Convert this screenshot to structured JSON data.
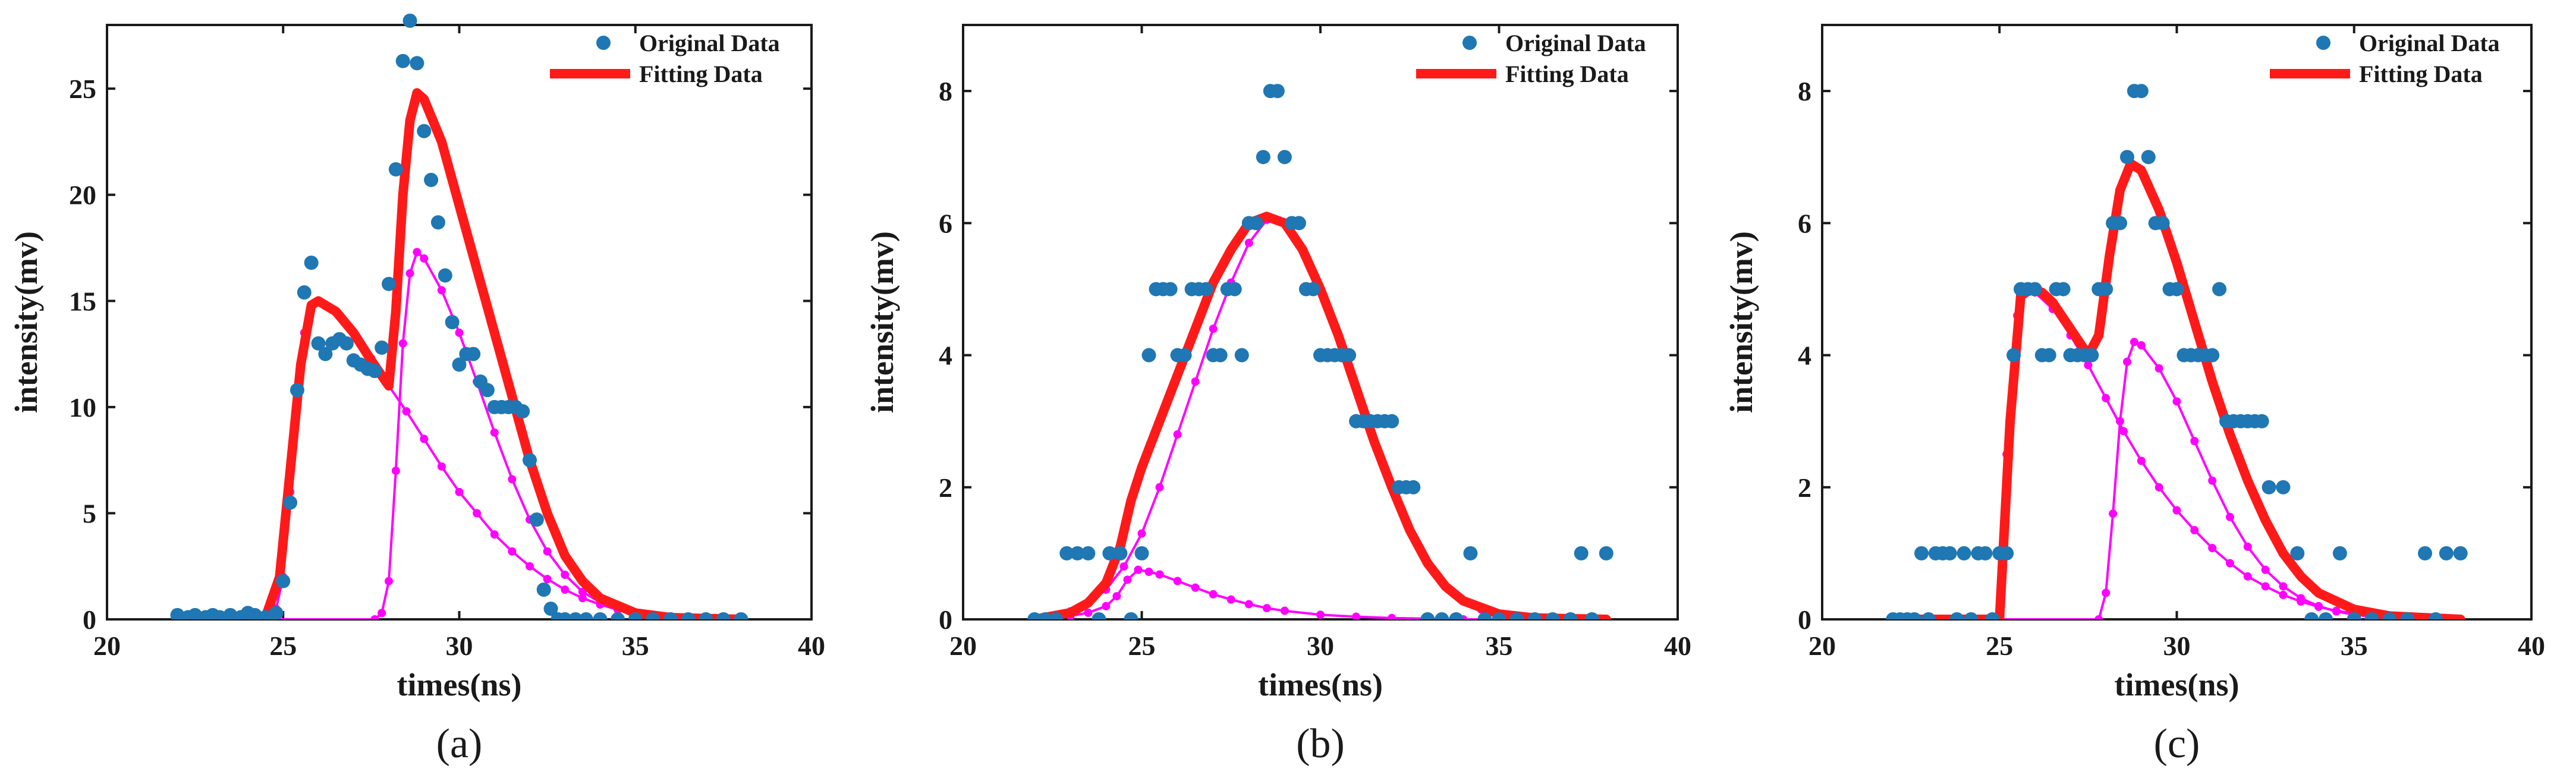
{
  "chart_data": [
    {
      "panel": "(a)",
      "type": "line+scatter",
      "xlabel": "times(ns)",
      "ylabel": "intensity(mv)",
      "xlim": [
        20,
        40
      ],
      "ylim": [
        0,
        28
      ],
      "xticks": [
        20,
        25,
        30,
        35,
        40
      ],
      "yticks": [
        0,
        5,
        10,
        15,
        20,
        25
      ],
      "legend": [
        "Original Data",
        "Fitting Data"
      ],
      "legend_position": "top-right",
      "original": {
        "x": [
          22,
          22.3,
          22.5,
          22.8,
          23,
          23.2,
          23.5,
          23.8,
          24,
          24.2,
          24.5,
          24.8,
          25,
          25.2,
          25.4,
          25.6,
          25.8,
          26,
          26.2,
          26.4,
          26.6,
          26.8,
          27,
          27.2,
          27.4,
          27.6,
          27.8,
          28,
          28.2,
          28.4,
          28.6,
          28.8,
          29,
          29.2,
          29.4,
          29.6,
          29.8,
          30,
          30.2,
          30.4,
          30.6,
          30.8,
          31,
          31.2,
          31.4,
          31.6,
          31.8,
          32,
          32.2,
          32.4,
          32.6,
          32.8,
          33,
          33.3,
          33.6,
          34,
          34.5,
          35,
          35.5,
          36,
          36.5,
          37,
          37.5,
          38
        ],
        "y": [
          0.2,
          0.1,
          0.2,
          0.1,
          0.2,
          0.1,
          0.2,
          0.1,
          0.3,
          0.2,
          0.1,
          0.3,
          1.8,
          5.5,
          10.8,
          15.4,
          16.8,
          13,
          12.5,
          13,
          13.2,
          13,
          12.2,
          12,
          11.8,
          11.7,
          12.8,
          15.8,
          21.2,
          26.3,
          28.2,
          26.2,
          23,
          20.7,
          18.7,
          16.2,
          14,
          12,
          12.5,
          12.5,
          11.2,
          10.8,
          10,
          10,
          10,
          10,
          9.8,
          7.5,
          4.7,
          1.4,
          0.5,
          0,
          0,
          0,
          0,
          0,
          0,
          0,
          0,
          0,
          0,
          0,
          0,
          0
        ]
      },
      "fit": {
        "x": [
          22,
          24.5,
          24.9,
          25.2,
          25.5,
          25.8,
          26,
          26.5,
          27,
          27.5,
          28,
          28.2,
          28.4,
          28.6,
          28.8,
          29,
          29.5,
          30,
          30.5,
          31,
          31.5,
          32,
          32.5,
          33,
          33.5,
          34,
          35,
          36,
          38
        ],
        "y": [
          0,
          0.1,
          2,
          7,
          12,
          14.8,
          15,
          14.5,
          13.5,
          12.2,
          11,
          14.5,
          20,
          23.5,
          24.8,
          24.5,
          22.5,
          19.5,
          16.5,
          13.5,
          10.5,
          7.5,
          5,
          3,
          1.8,
          1,
          0.3,
          0.08,
          0
        ]
      },
      "component_1": {
        "x": [
          22,
          24.5,
          24.8,
          25,
          25.2,
          25.4,
          25.6,
          25.8,
          26,
          26.5,
          27,
          27.5,
          28,
          28.5,
          29,
          29.5,
          30,
          30.5,
          31,
          31.5,
          32,
          32.5,
          33,
          33.5,
          34,
          34.5,
          35,
          35.5,
          36,
          37,
          38
        ],
        "y": [
          0,
          0,
          0.5,
          2,
          6,
          10.5,
          13.5,
          14.7,
          15,
          14.5,
          13.5,
          12.3,
          11,
          9.8,
          8.5,
          7.2,
          6,
          5,
          4,
          3.2,
          2.5,
          1.9,
          1.4,
          1,
          0.7,
          0.45,
          0.3,
          0.2,
          0.12,
          0.05,
          0
        ]
      },
      "component_2": {
        "x": [
          22,
          27.6,
          27.8,
          28,
          28.2,
          28.4,
          28.6,
          28.8,
          29,
          29.5,
          30,
          30.5,
          31,
          31.5,
          32,
          32.5,
          33,
          33.5,
          34,
          34.5,
          35,
          35.5,
          36,
          37,
          38
        ],
        "y": [
          0,
          0,
          0.3,
          1.8,
          7,
          13,
          16.3,
          17.3,
          17,
          15.5,
          13.5,
          11.2,
          8.8,
          6.6,
          4.7,
          3.2,
          2.1,
          1.3,
          0.8,
          0.45,
          0.25,
          0.13,
          0.06,
          0.02,
          0
        ]
      }
    },
    {
      "panel": "(b)",
      "type": "line+scatter",
      "xlabel": "times(ns)",
      "ylabel": "intensity(mv)",
      "xlim": [
        20,
        40
      ],
      "ylim": [
        0,
        9
      ],
      "xticks": [
        20,
        25,
        30,
        35,
        40
      ],
      "yticks": [
        0,
        2,
        4,
        6,
        8
      ],
      "legend": [
        "Original Data",
        "Fitting Data"
      ],
      "legend_position": "top-right",
      "original": {
        "x": [
          22,
          22.3,
          22.6,
          22.9,
          23.2,
          23.5,
          23.8,
          24.1,
          24.4,
          24.7,
          25,
          25.2,
          25.4,
          25.6,
          25.8,
          26,
          26.2,
          26.4,
          26.6,
          26.8,
          27,
          27.2,
          27.4,
          27.6,
          27.8,
          28,
          28.2,
          28.4,
          28.6,
          28.8,
          29,
          29.2,
          29.4,
          29.6,
          29.8,
          30,
          30.2,
          30.4,
          30.6,
          30.8,
          31,
          31.2,
          31.4,
          31.6,
          31.8,
          32,
          32.2,
          32.4,
          32.6,
          33,
          33.4,
          33.8,
          34.2,
          34.6,
          35,
          35.5,
          36,
          36.5,
          37,
          37.3,
          37.6,
          38
        ],
        "y": [
          0,
          0,
          0,
          1,
          1,
          1,
          0,
          1,
          1,
          0,
          1,
          4,
          5,
          5,
          5,
          4,
          4,
          5,
          5,
          5,
          4,
          4,
          5,
          5,
          4,
          6,
          6,
          7,
          8,
          8,
          7,
          6,
          6,
          5,
          5,
          4,
          4,
          4,
          4,
          4,
          3,
          3,
          3,
          3,
          3,
          3,
          2,
          2,
          2,
          0,
          0,
          0,
          1,
          0,
          0,
          0,
          0,
          0,
          0,
          1,
          0,
          1
        ]
      },
      "fit": {
        "x": [
          22,
          23,
          23.5,
          24,
          24.4,
          24.7,
          25,
          25.5,
          26,
          26.5,
          27,
          27.5,
          28,
          28.5,
          29,
          29.5,
          30,
          30.5,
          31,
          31.5,
          32,
          32.5,
          33,
          33.5,
          34,
          35,
          36,
          38
        ],
        "y": [
          0,
          0.1,
          0.25,
          0.55,
          1.1,
          1.8,
          2.3,
          3,
          3.7,
          4.4,
          5.1,
          5.6,
          6,
          6.1,
          6,
          5.6,
          5,
          4.3,
          3.5,
          2.7,
          2,
          1.35,
          0.85,
          0.5,
          0.28,
          0.08,
          0.02,
          0
        ]
      },
      "component_1": {
        "x": [
          22,
          22.5,
          23,
          23.5,
          24,
          24.3,
          24.6,
          24.9,
          25.2,
          25.5,
          26,
          26.5,
          27,
          27.5,
          28,
          28.5,
          29,
          30,
          31,
          32,
          33,
          34,
          35,
          36,
          37,
          38
        ],
        "y": [
          0,
          0.02,
          0.05,
          0.1,
          0.2,
          0.35,
          0.6,
          0.75,
          0.72,
          0.68,
          0.58,
          0.48,
          0.38,
          0.3,
          0.23,
          0.17,
          0.13,
          0.07,
          0.04,
          0.02,
          0.01,
          0,
          0,
          0,
          0,
          0
        ]
      },
      "component_2": {
        "x": [
          22,
          22.5,
          23,
          23.5,
          24,
          24.5,
          25,
          25.5,
          26,
          26.5,
          27,
          27.5,
          28,
          28.5,
          29,
          29.5,
          30,
          30.5,
          31,
          31.5,
          32,
          32.5,
          33,
          33.5,
          34,
          34.5,
          35,
          35.5,
          36,
          36.5,
          37,
          37.5,
          38
        ],
        "y": [
          0,
          0.05,
          0.12,
          0.25,
          0.45,
          0.8,
          1.3,
          2,
          2.8,
          3.6,
          4.4,
          5.1,
          5.7,
          6.05,
          6,
          5.6,
          5,
          4.3,
          3.5,
          2.7,
          2,
          1.35,
          0.85,
          0.5,
          0.28,
          0.15,
          0.08,
          0.04,
          0.02,
          0.01,
          0,
          0,
          0
        ]
      }
    },
    {
      "panel": "(c)",
      "type": "line+scatter",
      "xlabel": "times(ns)",
      "ylabel": "intensity(mv)",
      "xlim": [
        20,
        40
      ],
      "ylim": [
        0,
        9
      ],
      "xticks": [
        20,
        25,
        30,
        35,
        40
      ],
      "yticks": [
        0,
        2,
        4,
        6,
        8
      ],
      "legend": [
        "Original Data",
        "Fitting Data"
      ],
      "legend_position": "top-right",
      "original": {
        "x": [
          22,
          22.2,
          22.4,
          22.6,
          22.8,
          23,
          23.2,
          23.4,
          23.6,
          23.8,
          24,
          24.2,
          24.4,
          24.6,
          24.8,
          25,
          25.2,
          25.4,
          25.6,
          25.8,
          26,
          26.2,
          26.4,
          26.6,
          26.8,
          27,
          27.2,
          27.4,
          27.6,
          27.8,
          28,
          28.2,
          28.4,
          28.6,
          28.8,
          29,
          29.2,
          29.4,
          29.6,
          29.8,
          30,
          30.2,
          30.4,
          30.6,
          30.8,
          31,
          31.2,
          31.4,
          31.6,
          31.8,
          32,
          32.2,
          32.4,
          32.6,
          33,
          33.4,
          33.8,
          34.2,
          34.6,
          35,
          35.5,
          36,
          36.5,
          37,
          37.3,
          37.6,
          38
        ],
        "y": [
          0,
          0,
          0,
          0,
          1,
          0,
          1,
          1,
          1,
          0,
          1,
          0,
          1,
          1,
          0,
          1,
          1,
          4,
          5,
          5,
          5,
          4,
          4,
          5,
          5,
          4,
          4,
          4,
          4,
          5,
          5,
          6,
          6,
          7,
          8,
          8,
          7,
          6,
          6,
          5,
          5,
          4,
          4,
          4,
          4,
          4,
          5,
          3,
          3,
          3,
          3,
          3,
          3,
          2,
          2,
          1,
          0,
          0,
          1,
          0,
          0,
          0,
          0,
          1,
          0,
          1,
          1
        ]
      },
      "fit": {
        "x": [
          22,
          25,
          25.3,
          25.6,
          25.9,
          26.2,
          26.5,
          27,
          27.5,
          27.8,
          28.1,
          28.4,
          28.7,
          29,
          29.5,
          30,
          30.5,
          31,
          31.5,
          32,
          32.5,
          33,
          33.5,
          34,
          35,
          36,
          38
        ],
        "y": [
          0,
          0,
          3,
          4.9,
          5,
          4.95,
          4.8,
          4.4,
          4,
          4.3,
          5.5,
          6.5,
          6.9,
          6.8,
          6.2,
          5.4,
          4.5,
          3.6,
          2.8,
          2.1,
          1.5,
          1,
          0.65,
          0.4,
          0.15,
          0.05,
          0
        ]
      },
      "component_1": {
        "x": [
          22,
          24.9,
          25.2,
          25.5,
          25.8,
          26,
          26.5,
          27,
          27.5,
          28,
          28.5,
          29,
          29.5,
          30,
          30.5,
          31,
          31.5,
          32,
          32.5,
          33,
          33.5,
          34,
          34.5,
          35,
          35.5,
          36,
          37,
          38
        ],
        "y": [
          0,
          0,
          2.5,
          4.6,
          5,
          4.95,
          4.7,
          4.3,
          3.85,
          3.35,
          2.85,
          2.4,
          2,
          1.65,
          1.35,
          1.08,
          0.85,
          0.65,
          0.5,
          0.37,
          0.27,
          0.19,
          0.13,
          0.09,
          0.06,
          0.04,
          0.01,
          0
        ]
      },
      "component_2": {
        "x": [
          22,
          27.8,
          28,
          28.2,
          28.4,
          28.6,
          28.8,
          29,
          29.5,
          30,
          30.5,
          31,
          31.5,
          32,
          32.5,
          33,
          33.5,
          34,
          34.5,
          35,
          35.5,
          36,
          37,
          38
        ],
        "y": [
          0,
          0,
          0.4,
          1.6,
          3,
          3.9,
          4.2,
          4.15,
          3.8,
          3.3,
          2.7,
          2.1,
          1.55,
          1.1,
          0.75,
          0.5,
          0.32,
          0.2,
          0.12,
          0.07,
          0.04,
          0.02,
          0,
          0
        ]
      }
    }
  ],
  "colors": {
    "original": "#1f77b4",
    "fit": "#ff1a1a",
    "components": "#ff00ff",
    "axes": "#1a1a1a"
  }
}
